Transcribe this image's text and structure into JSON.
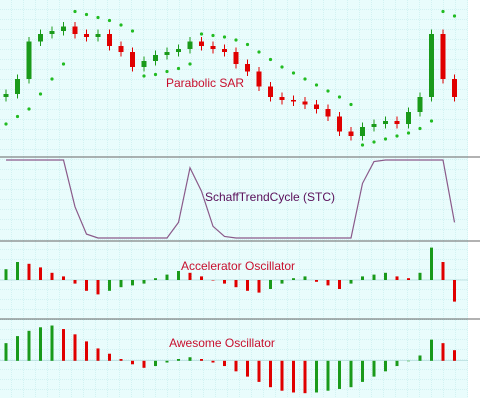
{
  "chart_data": [
    {
      "type": "candlestick",
      "title": "Parabolic SAR",
      "title_color": "#c8102e",
      "ylim": [
        0,
        100
      ],
      "up_color": "#1a9a1a",
      "down_color": "#e00000",
      "open": [
        38,
        40,
        50,
        75,
        80,
        82,
        85,
        80,
        78,
        80,
        72,
        68,
        58,
        62,
        66,
        68,
        70,
        75,
        72,
        70,
        68,
        60,
        55,
        45,
        38,
        36,
        35,
        33,
        30,
        25,
        15,
        12,
        18,
        20,
        22,
        20,
        28,
        38,
        80,
        50
      ],
      "high": [
        43,
        53,
        78,
        83,
        85,
        88,
        88,
        83,
        83,
        83,
        75,
        71,
        65,
        69,
        71,
        73,
        78,
        78,
        75,
        73,
        71,
        63,
        58,
        48,
        41,
        39,
        38,
        36,
        33,
        28,
        18,
        21,
        23,
        25,
        25,
        31,
        41,
        83,
        83,
        53
      ],
      "low": [
        35,
        37,
        47,
        72,
        77,
        79,
        77,
        75,
        75,
        69,
        65,
        55,
        55,
        59,
        63,
        65,
        67,
        69,
        67,
        65,
        57,
        52,
        42,
        35,
        33,
        32,
        30,
        27,
        22,
        12,
        9,
        9,
        15,
        17,
        17,
        17,
        25,
        35,
        47,
        35
      ],
      "close": [
        40,
        50,
        75,
        80,
        82,
        85,
        80,
        78,
        80,
        72,
        68,
        58,
        62,
        66,
        68,
        70,
        75,
        72,
        70,
        68,
        60,
        55,
        45,
        38,
        36,
        35,
        33,
        30,
        25,
        15,
        12,
        18,
        20,
        22,
        20,
        28,
        38,
        80,
        50,
        38
      ],
      "sar": {
        "color": "#22bb22",
        "values": [
          20,
          25,
          30,
          40,
          50,
          60,
          95,
          93,
          91,
          89,
          86,
          82,
          52,
          53,
          55,
          57,
          60,
          80,
          79,
          78,
          76,
          73,
          68,
          63,
          58,
          54,
          50,
          46,
          42,
          38,
          33,
          6,
          8,
          10,
          12,
          14,
          17,
          22,
          95,
          92
        ]
      }
    },
    {
      "type": "line",
      "title": "SchaffTrendCycle (STC)",
      "title_color": "#5a0f5a",
      "ylim": [
        0,
        100
      ],
      "color": "#8a5a8a",
      "values": [
        100,
        100,
        100,
        100,
        100,
        100,
        40,
        5,
        0,
        0,
        0,
        0,
        0,
        0,
        0,
        20,
        90,
        60,
        15,
        2,
        0,
        0,
        0,
        0,
        0,
        0,
        0,
        0,
        0,
        0,
        0,
        70,
        98,
        100,
        100,
        100,
        100,
        100,
        100,
        20
      ]
    },
    {
      "type": "bar",
      "title": "Accelerator Oscillator",
      "title_color": "#c8102e",
      "ylim": [
        -1,
        1
      ],
      "up_color": "#1a9a1a",
      "down_color": "#e00000",
      "values": [
        0.3,
        0.5,
        0.45,
        0.35,
        0.2,
        0.1,
        -0.1,
        -0.3,
        -0.4,
        -0.3,
        -0.2,
        -0.15,
        -0.1,
        0.05,
        0.15,
        0.25,
        0.2,
        0.1,
        0.0,
        -0.1,
        -0.2,
        -0.3,
        -0.35,
        -0.25,
        -0.1,
        0.05,
        0.1,
        -0.05,
        -0.15,
        -0.25,
        -0.1,
        0.1,
        0.15,
        0.2,
        0.1,
        0.05,
        0.2,
        0.9,
        0.5,
        -0.6
      ]
    },
    {
      "type": "bar",
      "title": "Awesome Oscillator",
      "title_color": "#c8102e",
      "ylim": [
        -1,
        1.1
      ],
      "up_color": "#1a9a1a",
      "down_color": "#e00000",
      "values": [
        0.5,
        0.7,
        0.85,
        0.95,
        1.0,
        0.9,
        0.75,
        0.55,
        0.35,
        0.2,
        0.05,
        -0.1,
        -0.2,
        -0.15,
        -0.05,
        0.05,
        0.1,
        0.05,
        -0.05,
        -0.15,
        -0.3,
        -0.45,
        -0.6,
        -0.75,
        -0.85,
        -0.9,
        -0.92,
        -0.9,
        -0.85,
        -0.8,
        -0.75,
        -0.6,
        -0.45,
        -0.3,
        -0.15,
        0.0,
        0.15,
        0.6,
        0.5,
        0.3
      ]
    }
  ]
}
